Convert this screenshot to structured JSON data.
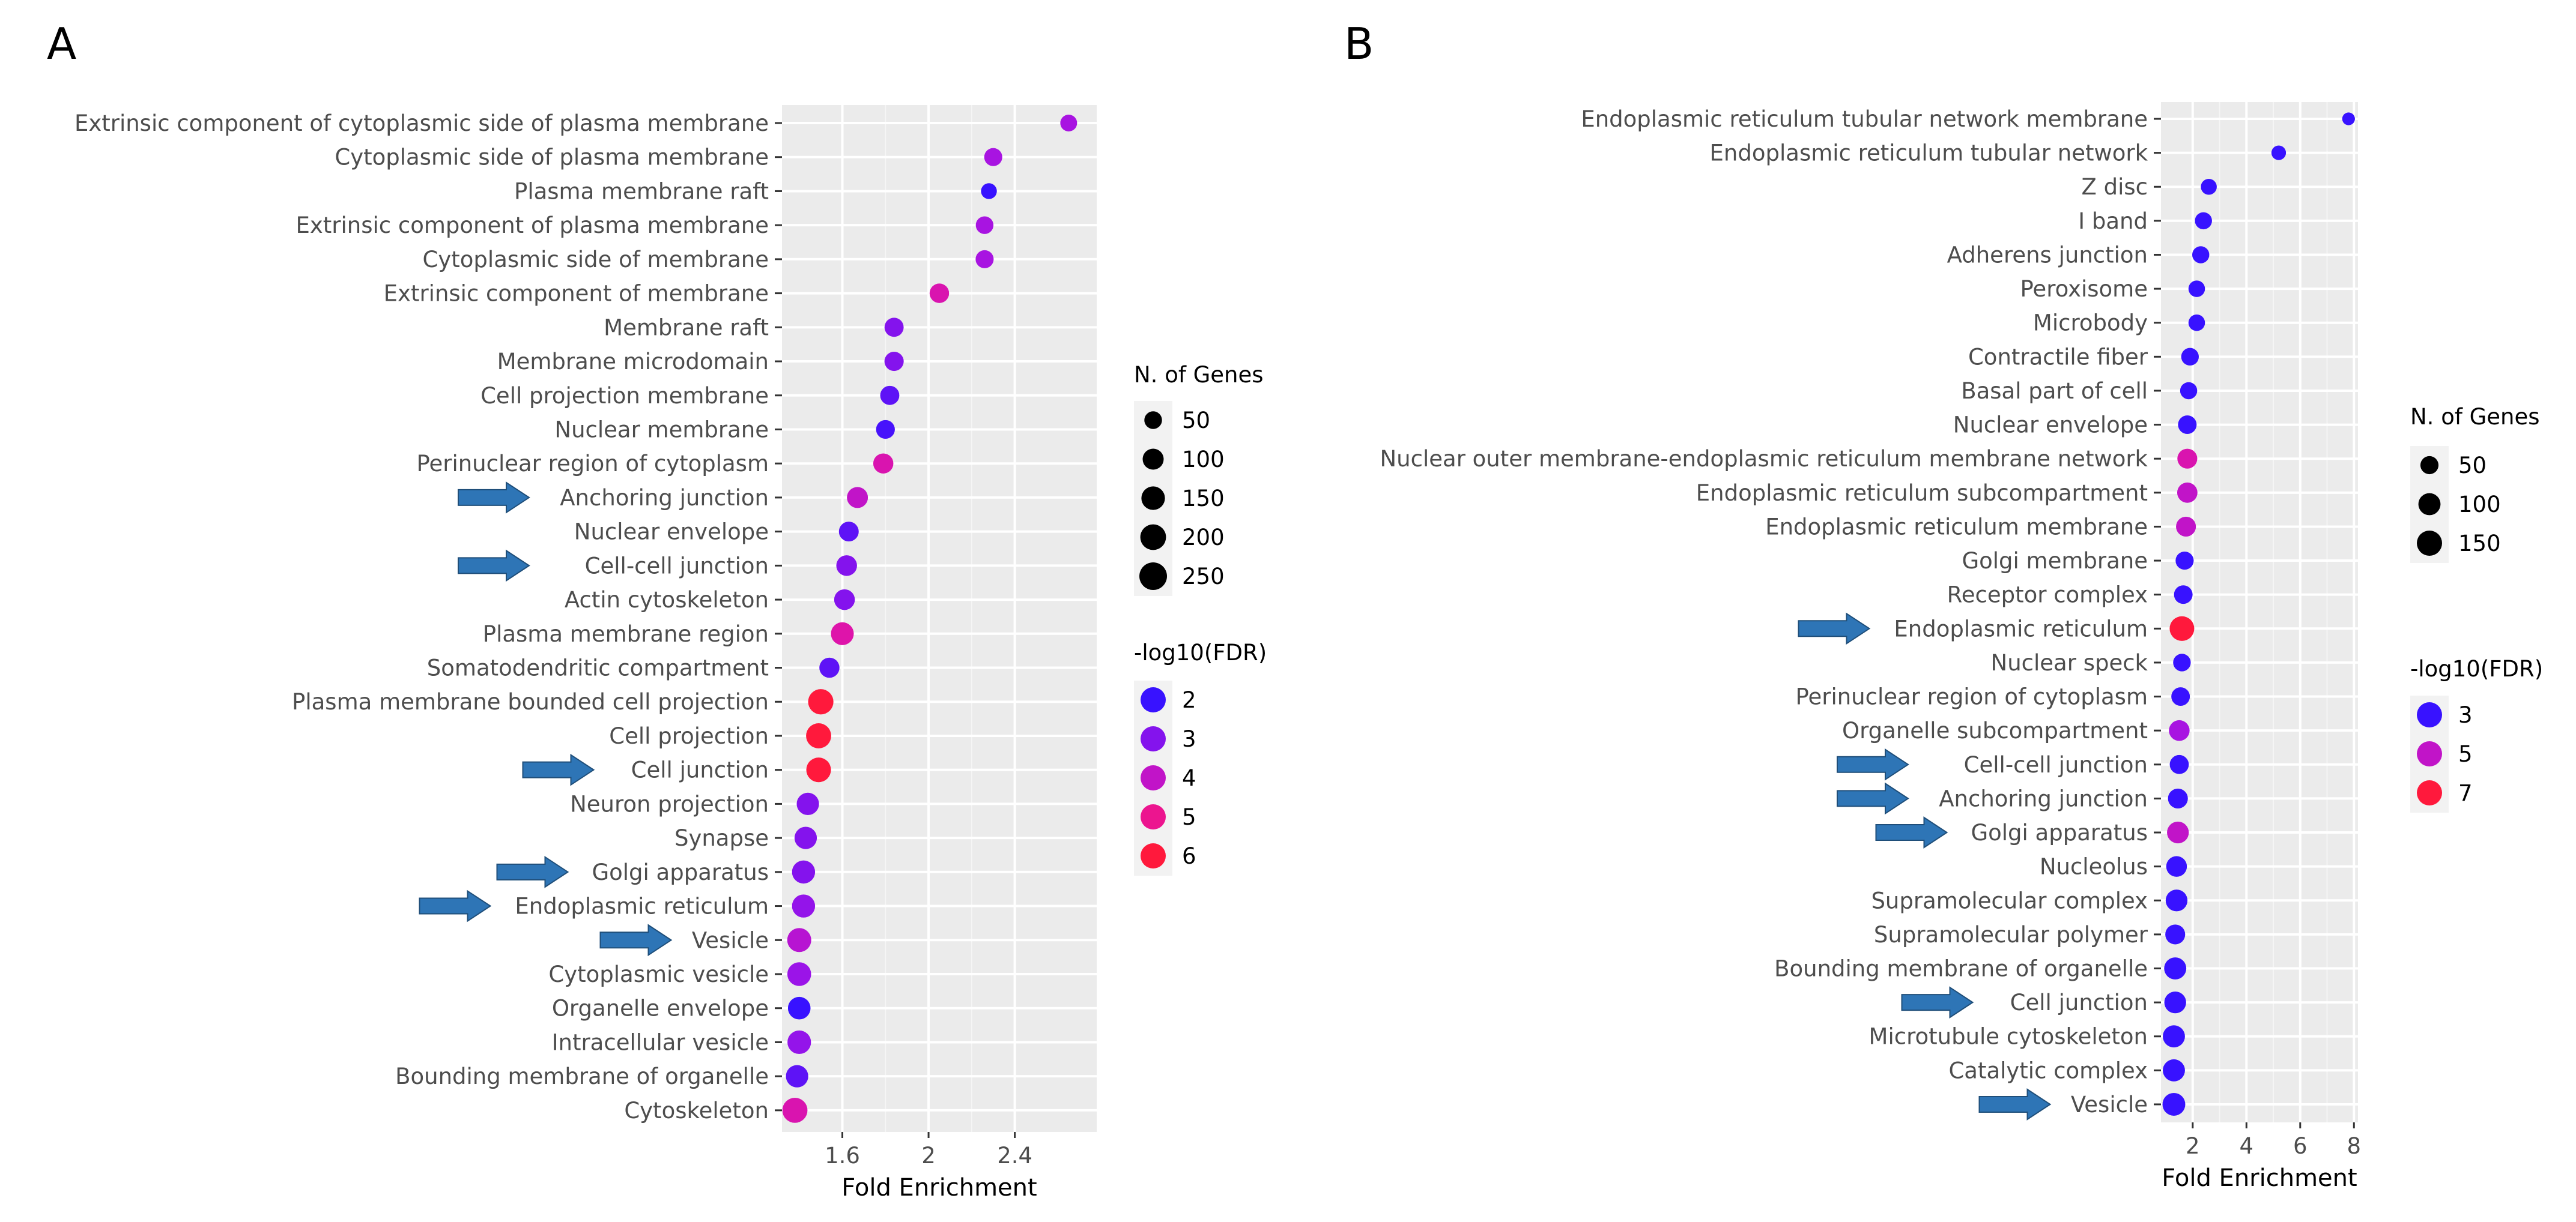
{
  "chart_data": [
    {
      "panel": "A",
      "type": "scatter",
      "subtype": "dot-plot",
      "xlabel": "Fold Enrichment",
      "xticks": [
        1.6,
        2.0,
        2.4
      ],
      "xlim": [
        1.32,
        2.78
      ],
      "size_legend": {
        "title": "N. of Genes",
        "values": [
          50,
          100,
          150,
          200,
          250
        ]
      },
      "color_legend": {
        "title": "-log10(FDR)",
        "values": [
          2,
          3,
          4,
          5,
          6
        ]
      },
      "categories": [
        "Extrinsic component of cytoplasmic side of plasma membrane",
        "Cytoplasmic side of plasma membrane",
        "Plasma membrane raft",
        "Extrinsic component of plasma membrane",
        "Cytoplasmic side of membrane",
        "Extrinsic component of membrane",
        "Membrane raft",
        "Membrane microdomain",
        "Cell projection membrane",
        "Nuclear membrane",
        "Perinuclear region of cytoplasm",
        "Anchoring junction",
        "Nuclear envelope",
        "Cell-cell junction",
        "Actin cytoskeleton",
        "Plasma membrane region",
        "Somatodendritic compartment",
        "Plasma membrane bounded cell projection",
        "Cell projection",
        "Cell junction",
        "Neuron projection",
        "Synapse",
        "Golgi apparatus",
        "Endoplasmic reticulum",
        "Vesicle",
        "Cytoplasmic vesicle",
        "Organelle envelope",
        "Intracellular vesicle",
        "Bounding membrane of organelle",
        "Cytoskeleton"
      ],
      "fold_enrichment": [
        2.65,
        2.3,
        2.28,
        2.26,
        2.26,
        2.05,
        1.84,
        1.84,
        1.82,
        1.8,
        1.79,
        1.67,
        1.63,
        1.62,
        1.61,
        1.6,
        1.54,
        1.5,
        1.49,
        1.49,
        1.44,
        1.43,
        1.42,
        1.42,
        1.4,
        1.4,
        1.4,
        1.4,
        1.39,
        1.38
      ],
      "n_genes": [
        40,
        55,
        30,
        50,
        55,
        75,
        70,
        72,
        70,
        65,
        85,
        100,
        80,
        95,
        95,
        135,
        85,
        190,
        185,
        175,
        125,
        125,
        140,
        140,
        160,
        155,
        130,
        150,
        125,
        185
      ],
      "neg_log10_fdr": [
        3.5,
        3.5,
        2,
        3.5,
        3.5,
        4.5,
        3,
        3,
        2.5,
        2.2,
        4.5,
        4,
        2.5,
        3,
        3,
        4.6,
        2.5,
        6,
        6,
        6,
        3,
        3,
        3,
        3.2,
        3.8,
        3.3,
        2,
        3.2,
        2.5,
        4.5
      ],
      "highlighted": [
        "Anchoring junction",
        "Cell-cell junction",
        "Cell junction",
        "Golgi apparatus",
        "Endoplasmic reticulum",
        "Vesicle"
      ]
    },
    {
      "panel": "B",
      "type": "scatter",
      "subtype": "dot-plot",
      "xlabel": "Fold Enrichment",
      "xticks": [
        2,
        4,
        6,
        8
      ],
      "xlim": [
        0.82,
        8.15
      ],
      "size_legend": {
        "title": "N. of Genes",
        "values": [
          50,
          100,
          150
        ]
      },
      "color_legend": {
        "title": "-log10(FDR)",
        "values": [
          3,
          5,
          7
        ]
      },
      "categories": [
        "Endoplasmic reticulum tubular network membrane",
        "Endoplasmic reticulum tubular network",
        "Z disc",
        "I band",
        "Adherens junction",
        "Peroxisome",
        "Microbody",
        "Contractile fiber",
        "Basal part of cell",
        "Nuclear envelope",
        "Nuclear outer membrane-endoplasmic reticulum membrane network",
        "Endoplasmic reticulum subcompartment",
        "Endoplasmic reticulum membrane",
        "Golgi membrane",
        "Receptor complex",
        "Endoplasmic reticulum",
        "Nuclear speck",
        "Perinuclear region of cytoplasm",
        "Organelle subcompartment",
        "Cell-cell junction",
        "Anchoring junction",
        "Golgi apparatus",
        "Nucleolus",
        "Supramolecular complex",
        "Supramolecular polymer",
        "Bounding membrane of organelle",
        "Cell junction",
        "Microtubule cytoskeleton",
        "Catalytic complex",
        "Vesicle"
      ],
      "fold_enrichment": [
        7.8,
        5.2,
        2.6,
        2.4,
        2.3,
        2.15,
        2.15,
        1.9,
        1.85,
        1.8,
        1.8,
        1.8,
        1.75,
        1.7,
        1.65,
        1.6,
        1.6,
        1.55,
        1.5,
        1.5,
        1.45,
        1.45,
        1.4,
        1.4,
        1.35,
        1.35,
        1.35,
        1.3,
        1.3,
        1.3
      ],
      "n_genes": [
        10,
        20,
        30,
        40,
        40,
        35,
        35,
        45,
        40,
        55,
        70,
        75,
        70,
        50,
        55,
        140,
        45,
        55,
        80,
        60,
        70,
        95,
        80,
        95,
        70,
        100,
        95,
        100,
        100,
        110
      ],
      "neg_log10_fdr": [
        1.8,
        3,
        2.5,
        2,
        2,
        1.8,
        1.8,
        1.8,
        1.8,
        2.7,
        5.5,
        5,
        5,
        2.5,
        2.7,
        7,
        1.8,
        2.2,
        4.5,
        1.8,
        2.3,
        5,
        3,
        3,
        1.8,
        2,
        2.5,
        1.5,
        2,
        2
      ],
      "highlighted": [
        "Endoplasmic reticulum",
        "Cell-cell junction",
        "Anchoring junction",
        "Golgi apparatus",
        "Cell junction",
        "Vesicle"
      ]
    }
  ]
}
